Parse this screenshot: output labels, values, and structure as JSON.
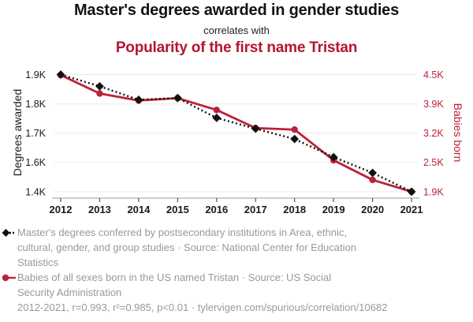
{
  "header": {
    "title": "Master's degrees awarded in gender studies",
    "connector": "correlates with",
    "subtitle": "Popularity of the first name Tristan",
    "title_color": "#121212",
    "subtitle_color": "#b5152f"
  },
  "chart_data": {
    "type": "line",
    "x": [
      "2012",
      "2013",
      "2014",
      "2015",
      "2016",
      "2017",
      "2018",
      "2019",
      "2020",
      "2021"
    ],
    "series": [
      {
        "name": "Master's degrees conferred by postsecondary institutions in Area, ethnic, cultural, gender, and group studies",
        "source": "National Center for Education Statistics",
        "axis": "left",
        "color": "#111111",
        "line_style": "dotted",
        "marker": "diamond",
        "values": [
          1900,
          1860,
          1814,
          1820,
          1752,
          1715,
          1680,
          1618,
          1529,
          1400
        ]
      },
      {
        "name": "Babies of all sexes born in the US named Tristan",
        "source": "US Social Security Administration",
        "axis": "right",
        "color": "#bc2138",
        "line_style": "solid",
        "marker": "circle",
        "values": [
          4490,
          4113,
          3968,
          4017,
          3754,
          3322,
          3285,
          2552,
          2142,
          1900
        ]
      }
    ],
    "left_axis": {
      "label": "Degrees awarded",
      "tick_labels": [
        "1.9K",
        "1.8K",
        "1.7K",
        "1.6K",
        "1.4K"
      ],
      "tick_values": [
        1900,
        1800,
        1700,
        1600,
        1400
      ],
      "color": "#1a1a1a"
    },
    "right_axis": {
      "label": "Babies born",
      "tick_labels": [
        "4.5K",
        "3.9K",
        "3.2K",
        "2.5K",
        "1.9K"
      ],
      "tick_values": [
        4500,
        3900,
        3200,
        2500,
        1900
      ],
      "color": "#bc2138"
    },
    "grid": true,
    "legend_position": "bottom",
    "gridline_color": "#ebebeb",
    "axis_line_color": "#999999",
    "axis_tick_color": "#555555"
  },
  "legend": {
    "items": [
      {
        "lines": [
          "Master's degrees conferred by postsecondary institutions in Area, ethnic,",
          "cultural, gender, and group studies · Source: National Center for Education",
          "Statistics"
        ]
      },
      {
        "lines": [
          "Babies of all sexes born in the US named Tristan · Source: US Social",
          "Security Administration"
        ]
      }
    ],
    "footer": "2012-2021, r=0.993, r²=0.985, p<0.01 · tylervigen.com/spurious/correlation/10682",
    "text_color": "#999999"
  }
}
